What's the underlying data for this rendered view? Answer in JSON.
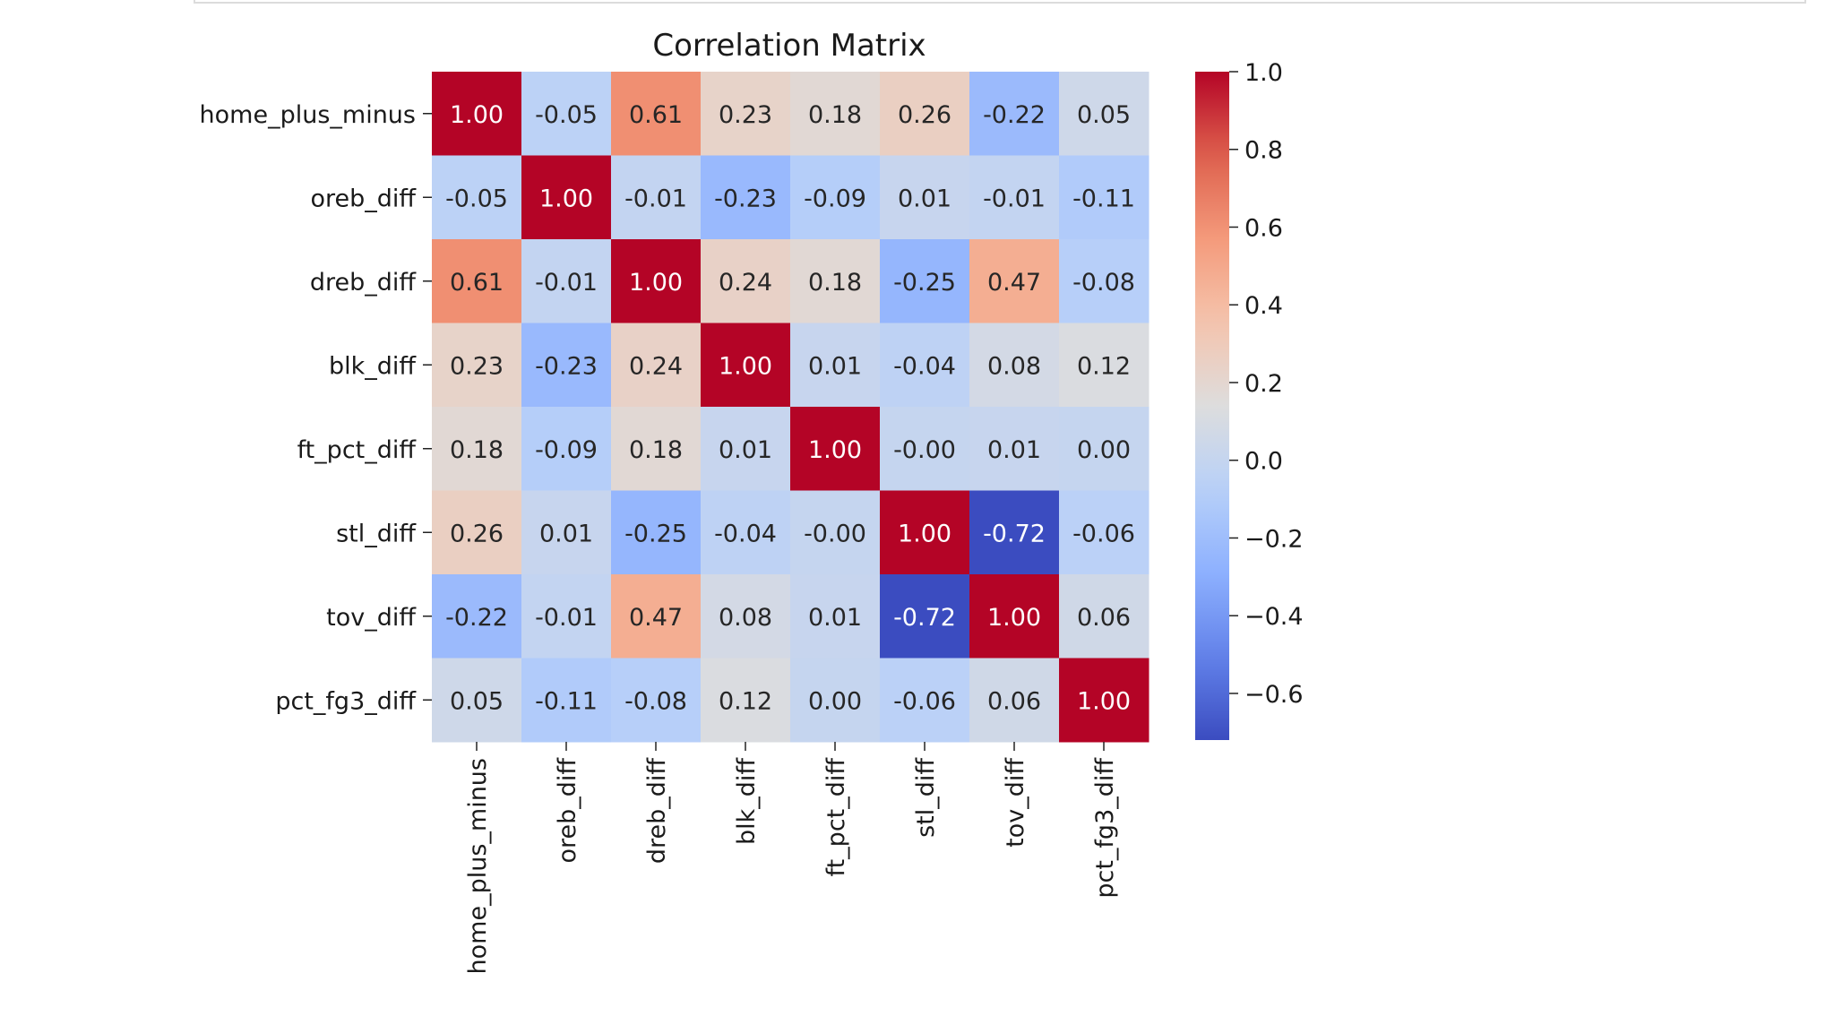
{
  "chart_data": {
    "type": "heatmap",
    "title": "Correlation Matrix",
    "xlabel": "",
    "ylabel": "",
    "colormap": "coolwarm",
    "labels": [
      "home_plus_minus",
      "oreb_diff",
      "dreb_diff",
      "blk_diff",
      "ft_pct_diff",
      "stl_diff",
      "tov_diff",
      "pct_fg3_diff"
    ],
    "matrix": [
      [
        1.0,
        -0.05,
        0.61,
        0.23,
        0.18,
        0.26,
        -0.22,
        0.05
      ],
      [
        -0.05,
        1.0,
        -0.01,
        -0.23,
        -0.09,
        0.01,
        -0.01,
        -0.11
      ],
      [
        0.61,
        -0.01,
        1.0,
        0.24,
        0.18,
        -0.25,
        0.47,
        -0.08
      ],
      [
        0.23,
        -0.23,
        0.24,
        1.0,
        0.01,
        -0.04,
        0.08,
        0.12
      ],
      [
        0.18,
        -0.09,
        0.18,
        0.01,
        1.0,
        -0.0,
        0.01,
        0.0
      ],
      [
        0.26,
        0.01,
        -0.25,
        -0.04,
        -0.0,
        1.0,
        -0.72,
        -0.06
      ],
      [
        -0.22,
        -0.01,
        0.47,
        0.08,
        0.01,
        -0.72,
        1.0,
        0.06
      ],
      [
        0.05,
        -0.11,
        -0.08,
        0.12,
        0.0,
        -0.06,
        0.06,
        1.0
      ]
    ],
    "value_format": "0.00",
    "colorbar": {
      "range": [
        -0.72,
        1.0
      ],
      "ticks": [
        1.0,
        0.8,
        0.6,
        0.4,
        0.2,
        0.0,
        -0.2,
        -0.4,
        -0.6
      ],
      "tick_labels": [
        "1.0",
        "0.8",
        "0.6",
        "0.4",
        "0.2",
        "0.0",
        "−0.2",
        "−0.4",
        "−0.6"
      ]
    },
    "grid": false
  }
}
